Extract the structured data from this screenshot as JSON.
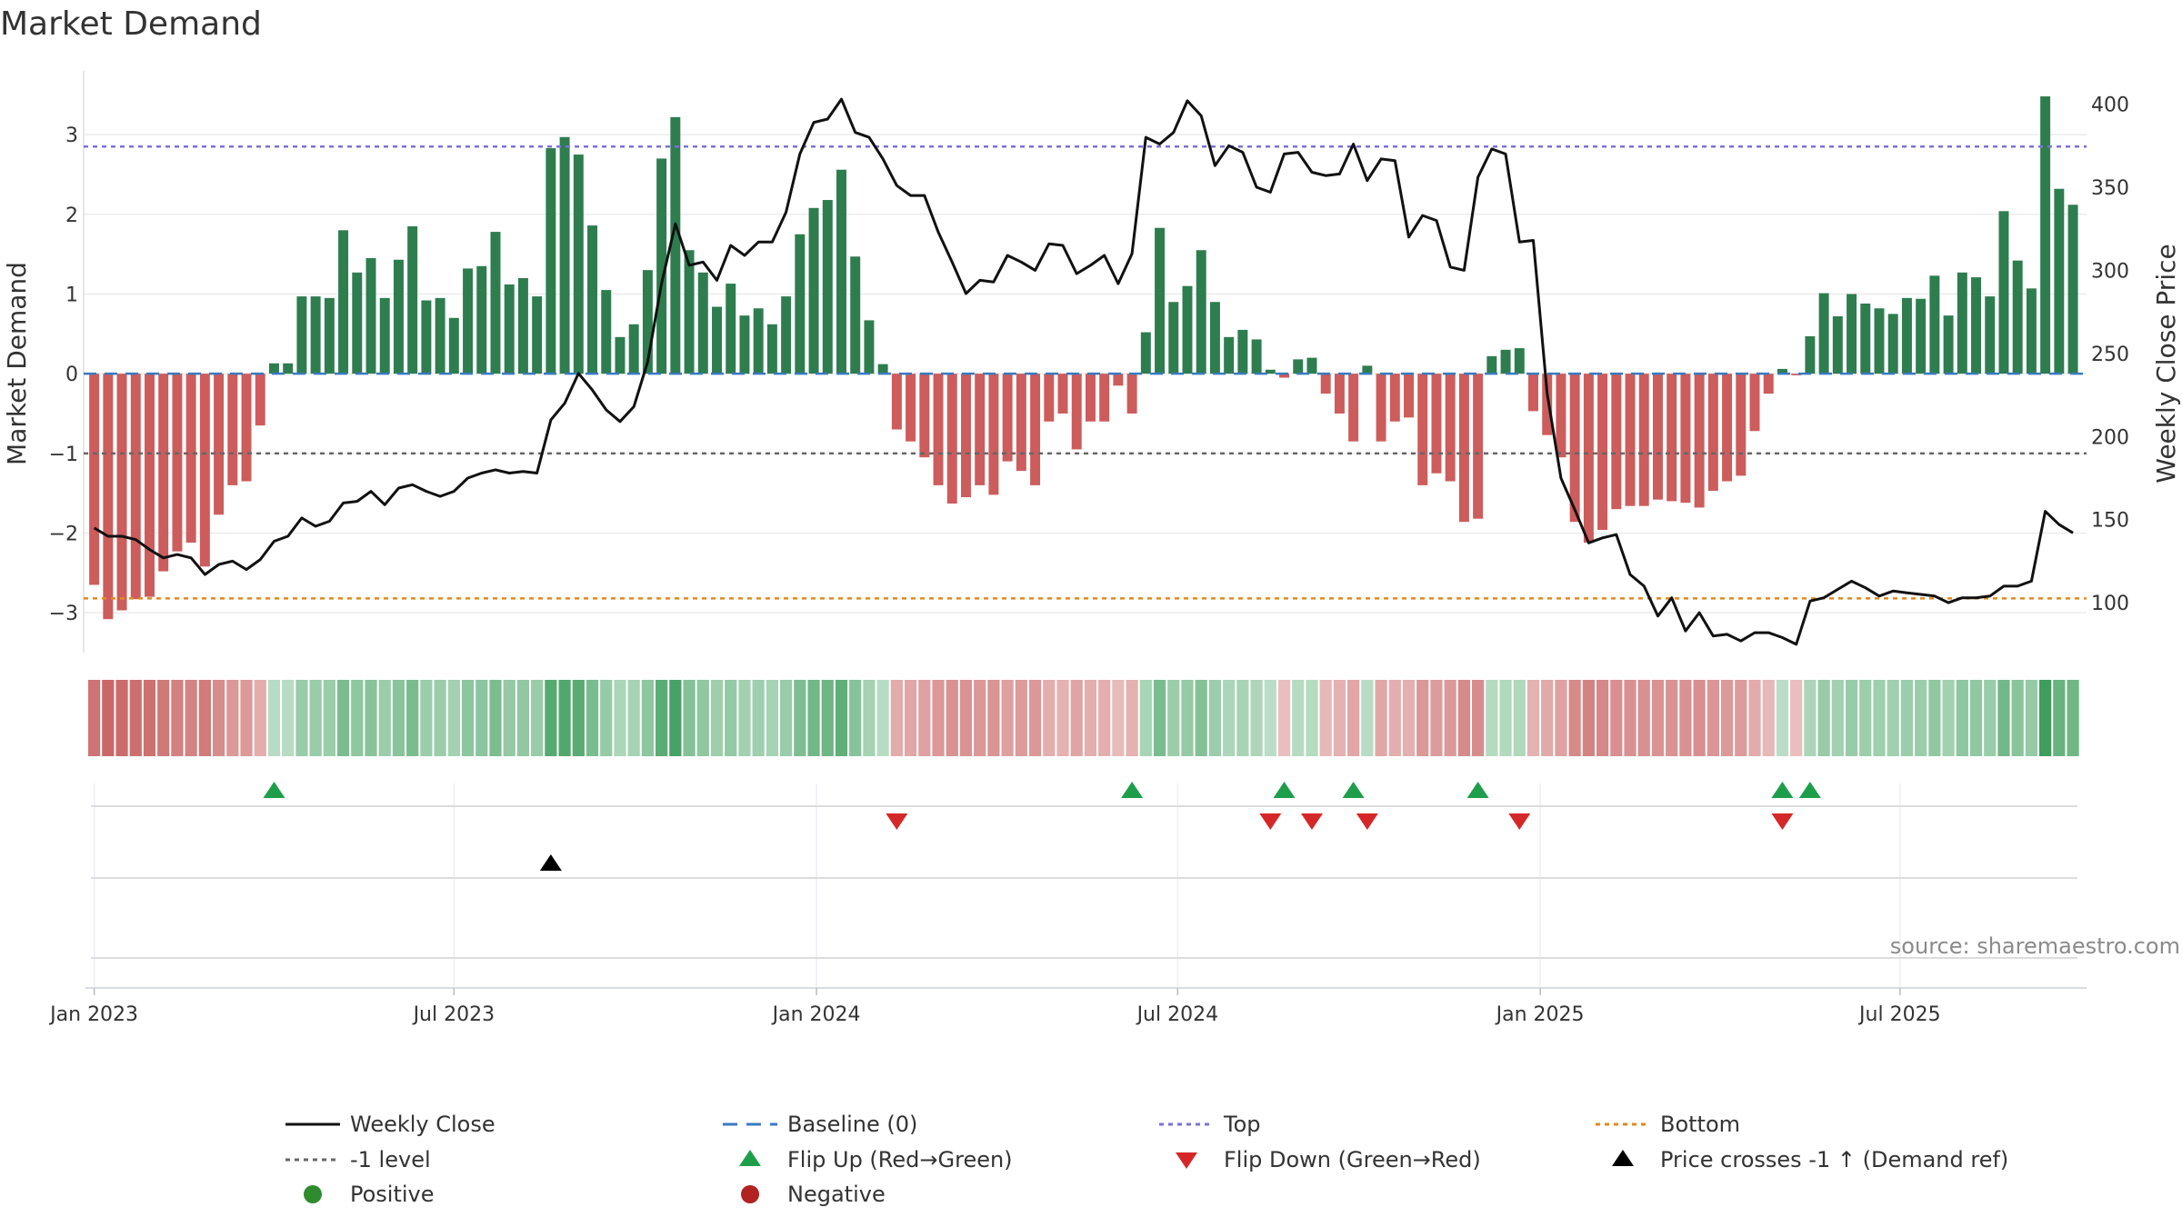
{
  "chart_data": {
    "type": "bar",
    "title": "Market Demand",
    "ylabel_left": "Market Demand",
    "ylabel_right": "Weekly Close Price",
    "ylim_left": [
      -3.5,
      3.8
    ],
    "ylim_right": [
      70,
      420
    ],
    "yticks_left": [
      3,
      2,
      1,
      0,
      -1,
      -2,
      -3
    ],
    "ytick_labels_left": [
      "3",
      "2",
      "1",
      "0",
      "−1",
      "−2",
      "−3"
    ],
    "yticks_right": [
      400,
      350,
      300,
      250,
      200,
      150,
      100
    ],
    "ytick_labels_right": [
      "400",
      "350",
      "300",
      "250",
      "200",
      "150",
      "100"
    ],
    "x_ticks": [
      "Jan 2023",
      "Jul 2023",
      "Jan 2024",
      "Jul 2024",
      "Jan 2025",
      "Jul 2025"
    ],
    "x_tick_weeks": [
      0.5,
      26.5,
      52.7,
      78.8,
      105,
      131
    ],
    "reference_levels": {
      "top": 2.85,
      "minus_one": -1,
      "bottom": -2.82,
      "baseline": 0
    },
    "demand": [
      -2.65,
      -3.08,
      -2.97,
      -2.83,
      -2.8,
      -2.48,
      -2.23,
      -2.12,
      -2.42,
      -1.77,
      -1.4,
      -1.35,
      -0.65,
      0.13,
      0.13,
      0.97,
      0.97,
      0.95,
      1.8,
      1.27,
      1.45,
      0.95,
      1.43,
      1.85,
      0.92,
      0.95,
      0.7,
      1.32,
      1.35,
      1.78,
      1.12,
      1.2,
      0.97,
      2.83,
      2.97,
      2.75,
      1.86,
      1.05,
      0.46,
      0.62,
      1.3,
      2.7,
      3.22,
      1.55,
      1.27,
      0.84,
      1.13,
      0.73,
      0.82,
      0.62,
      0.97,
      1.75,
      2.08,
      2.18,
      2.56,
      1.47,
      0.67,
      0.12,
      -0.7,
      -0.85,
      -1.05,
      -1.4,
      -1.63,
      -1.55,
      -1.4,
      -1.52,
      -1.1,
      -1.22,
      -1.4,
      -0.6,
      -0.5,
      -0.95,
      -0.6,
      -0.6,
      -0.15,
      -0.5,
      0.52,
      1.83,
      0.9,
      1.1,
      1.55,
      0.9,
      0.46,
      0.55,
      0.43,
      0.05,
      -0.05,
      0.18,
      0.2,
      -0.25,
      -0.5,
      -0.85,
      0.1,
      -0.85,
      -0.6,
      -0.55,
      -1.4,
      -1.25,
      -1.35,
      -1.86,
      -1.82,
      0.22,
      0.3,
      0.32,
      -0.47,
      -0.77,
      -1.05,
      -1.86,
      -2.12,
      -1.96,
      -1.7,
      -1.66,
      -1.66,
      -1.58,
      -1.6,
      -1.62,
      -1.68,
      -1.47,
      -1.35,
      -1.28,
      -0.72,
      -0.25,
      0.06,
      -0.02,
      0.47,
      1.01,
      0.72,
      1.0,
      0.88,
      0.82,
      0.75,
      0.95,
      0.94,
      1.23,
      0.73,
      1.27,
      1.21,
      0.97,
      2.04,
      1.42,
      1.07,
      3.48,
      2.32,
      2.12
    ],
    "weekly_close": [
      145,
      140,
      140,
      138,
      132,
      127,
      129,
      127,
      117,
      123,
      125,
      120,
      126,
      137,
      140,
      151,
      146,
      149,
      160,
      161,
      167,
      159,
      169,
      171,
      167,
      164,
      167,
      175,
      178,
      180,
      178,
      179,
      178,
      210,
      220,
      238,
      228,
      216,
      209,
      218,
      245,
      292,
      328,
      303,
      305,
      294,
      315,
      309,
      317,
      317,
      335,
      370,
      389,
      391,
      403,
      383,
      380,
      367,
      351,
      345,
      345,
      323,
      305,
      286,
      294,
      293,
      309,
      305,
      300,
      316,
      315,
      298,
      303,
      309,
      292,
      310,
      380,
      376,
      383,
      402,
      393,
      363,
      375,
      371,
      350,
      347,
      370,
      371,
      359,
      357,
      358,
      376,
      354,
      367,
      366,
      320,
      333,
      330,
      302,
      300,
      356,
      373,
      370,
      317,
      318,
      226,
      175,
      156,
      136,
      139,
      141,
      117,
      110,
      92,
      103,
      83,
      94,
      80,
      81,
      77,
      82,
      82,
      79,
      75,
      101,
      103,
      108,
      113,
      109,
      104,
      107,
      106,
      105,
      104,
      100,
      103,
      103,
      104,
      110,
      110,
      113,
      155,
      147,
      142
    ],
    "gradient_strip": "one colour cell per week; colour intensity reflects the sign and magnitude of demand",
    "events": {
      "flip_up_weeks": [
        13,
        75,
        86,
        91,
        100,
        122,
        124
      ],
      "flip_down_weeks": [
        58,
        85,
        88,
        92,
        103,
        122
      ],
      "price_cross_weeks": [
        33
      ]
    },
    "legend": [
      {
        "key": "weekly_close",
        "label": "Weekly Close"
      },
      {
        "key": "baseline",
        "label": "Baseline (0)"
      },
      {
        "key": "top",
        "label": "Top"
      },
      {
        "key": "bottom",
        "label": "Bottom"
      },
      {
        "key": "minus_one",
        "label": "-1 level"
      },
      {
        "key": "flip_up",
        "label": "Flip Up (Red→Green)"
      },
      {
        "key": "flip_down",
        "label": "Flip Down (Green→Red)"
      },
      {
        "key": "price_cross",
        "label": "Price crosses -1 ↑ (Demand ref)"
      },
      {
        "key": "positive",
        "label": "Positive"
      },
      {
        "key": "negative",
        "label": "Negative"
      }
    ],
    "source": "source: sharemaestro.com"
  },
  "colors": {
    "positive": "#2e7d4f",
    "negative": "#cd5c5c",
    "price_line": "#111111",
    "top": "#7b72d6",
    "bottom": "#e08a1e",
    "minus_one": "#666666",
    "baseline": "#3a7abf",
    "flip_up": "#1e9e4a",
    "flip_down": "#d62728",
    "price_cross": "#000000",
    "legend_positive": "#2e8b2e",
    "legend_negative": "#b22222"
  }
}
